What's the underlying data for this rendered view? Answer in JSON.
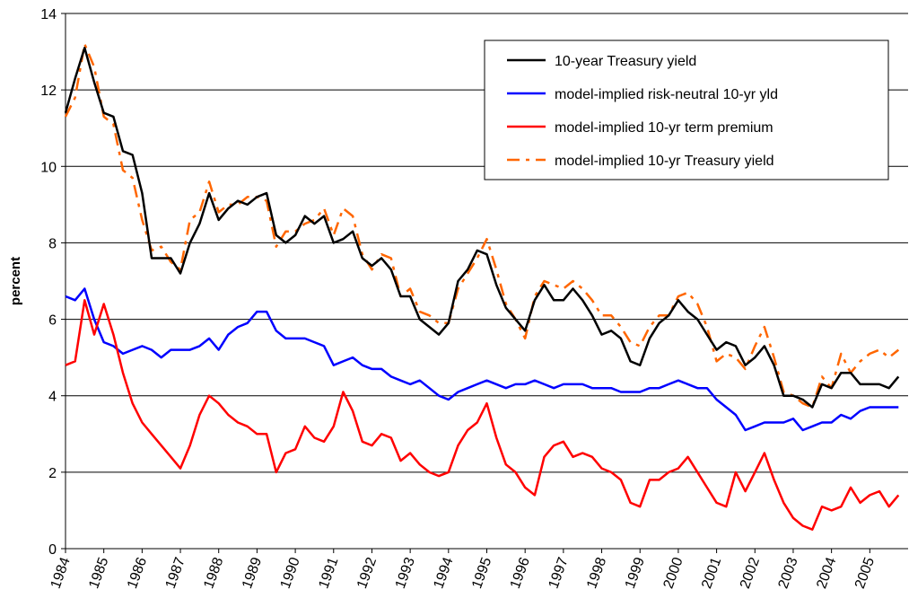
{
  "chart_data": {
    "type": "line",
    "y_label": "percent",
    "x": [
      1984,
      1984.25,
      1984.5,
      1984.75,
      1985,
      1985.25,
      1985.5,
      1985.75,
      1986,
      1986.25,
      1986.5,
      1986.75,
      1987,
      1987.25,
      1987.5,
      1987.75,
      1988,
      1988.25,
      1988.5,
      1988.75,
      1989,
      1989.25,
      1989.5,
      1989.75,
      1990,
      1990.25,
      1990.5,
      1990.75,
      1991,
      1991.25,
      1991.5,
      1991.75,
      1992,
      1992.25,
      1992.5,
      1992.75,
      1993,
      1993.25,
      1993.5,
      1993.75,
      1994,
      1994.25,
      1994.5,
      1994.75,
      1995,
      1995.25,
      1995.5,
      1995.75,
      1996,
      1996.25,
      1996.5,
      1996.75,
      1997,
      1997.25,
      1997.5,
      1997.75,
      1998,
      1998.25,
      1998.5,
      1998.75,
      1999,
      1999.25,
      1999.5,
      1999.75,
      2000,
      2000.25,
      2000.5,
      2000.75,
      2001,
      2001.25,
      2001.5,
      2001.75,
      2002,
      2002.25,
      2002.5,
      2002.75,
      2003,
      2003.25,
      2003.5,
      2003.75,
      2004,
      2004.25,
      2004.5,
      2004.75,
      2005,
      2005.25,
      2005.5,
      2005.75
    ],
    "series": [
      {
        "name": "10-year Treasury yield",
        "color": "#000000",
        "style": "solid",
        "values": [
          11.4,
          12.3,
          13.1,
          12.2,
          11.4,
          11.3,
          10.4,
          10.3,
          9.3,
          7.6,
          7.6,
          7.6,
          7.2,
          8.0,
          8.5,
          9.3,
          8.6,
          8.9,
          9.1,
          9.0,
          9.2,
          9.3,
          8.2,
          8.0,
          8.2,
          8.7,
          8.5,
          8.7,
          8.0,
          8.1,
          8.3,
          7.6,
          7.4,
          7.6,
          7.3,
          6.6,
          6.6,
          6.0,
          5.8,
          5.6,
          5.9,
          7.0,
          7.3,
          7.8,
          7.7,
          6.9,
          6.3,
          6.0,
          5.7,
          6.5,
          6.9,
          6.5,
          6.5,
          6.8,
          6.5,
          6.1,
          5.6,
          5.7,
          5.5,
          4.9,
          4.8,
          5.5,
          5.9,
          6.1,
          6.5,
          6.2,
          6.0,
          5.6,
          5.2,
          5.4,
          5.3,
          4.8,
          5.0,
          5.3,
          4.8,
          4.0,
          4.0,
          3.9,
          3.7,
          4.3,
          4.2,
          4.6,
          4.6,
          4.3,
          4.3,
          4.3,
          4.2,
          4.5
        ]
      },
      {
        "name": "model-implied risk-neutral 10-yr yld",
        "color": "#0000ff",
        "style": "solid",
        "values": [
          6.6,
          6.5,
          6.8,
          6.0,
          5.4,
          5.3,
          5.1,
          5.2,
          5.3,
          5.2,
          5.0,
          5.2,
          5.2,
          5.2,
          5.3,
          5.5,
          5.2,
          5.6,
          5.8,
          5.9,
          6.2,
          6.2,
          5.7,
          5.5,
          5.5,
          5.5,
          5.4,
          5.3,
          4.8,
          4.9,
          5.0,
          4.8,
          4.7,
          4.7,
          4.5,
          4.4,
          4.3,
          4.4,
          4.2,
          4.0,
          3.9,
          4.1,
          4.2,
          4.3,
          4.4,
          4.3,
          4.2,
          4.3,
          4.3,
          4.4,
          4.3,
          4.2,
          4.3,
          4.3,
          4.3,
          4.2,
          4.2,
          4.2,
          4.1,
          4.1,
          4.1,
          4.2,
          4.2,
          4.3,
          4.4,
          4.3,
          4.2,
          4.2,
          3.9,
          3.7,
          3.5,
          3.1,
          3.2,
          3.3,
          3.3,
          3.3,
          3.4,
          3.1,
          3.2,
          3.3,
          3.3,
          3.5,
          3.4,
          3.6,
          3.7,
          3.7,
          3.7,
          3.7
        ]
      },
      {
        "name": "model-implied 10-yr term premium",
        "color": "#ff0000",
        "style": "solid",
        "values": [
          4.8,
          4.9,
          6.5,
          5.6,
          6.4,
          5.6,
          4.6,
          3.8,
          3.3,
          3.0,
          2.7,
          2.4,
          2.1,
          2.7,
          3.5,
          4.0,
          3.8,
          3.5,
          3.3,
          3.2,
          3.0,
          3.0,
          2.0,
          2.5,
          2.6,
          3.2,
          2.9,
          2.8,
          3.2,
          4.1,
          3.6,
          2.8,
          2.7,
          3.0,
          2.9,
          2.3,
          2.5,
          2.2,
          2.0,
          1.9,
          2.0,
          2.7,
          3.1,
          3.3,
          3.8,
          2.9,
          2.2,
          2.0,
          1.6,
          1.4,
          2.4,
          2.7,
          2.8,
          2.4,
          2.5,
          2.4,
          2.1,
          2.0,
          1.8,
          1.2,
          1.1,
          1.8,
          1.8,
          2.0,
          2.1,
          2.4,
          2.0,
          1.6,
          1.2,
          1.1,
          2.0,
          1.5,
          2.0,
          2.5,
          1.8,
          1.2,
          0.8,
          0.6,
          0.5,
          1.1,
          1.0,
          1.1,
          1.6,
          1.2,
          1.4,
          1.5,
          1.1,
          1.4
        ]
      },
      {
        "name": "model-implied 10-yr Treasury yield",
        "color": "#ff6600",
        "style": "dashdot",
        "values": [
          11.3,
          11.8,
          13.2,
          12.6,
          11.3,
          11.1,
          9.9,
          9.7,
          8.6,
          7.8,
          7.9,
          7.5,
          7.3,
          8.6,
          8.8,
          9.6,
          8.8,
          9.0,
          9.0,
          9.2,
          9.2,
          9.1,
          7.9,
          8.3,
          8.3,
          8.5,
          8.6,
          8.9,
          8.2,
          8.9,
          8.7,
          7.7,
          7.3,
          7.7,
          7.6,
          6.6,
          6.8,
          6.2,
          6.1,
          5.9,
          5.9,
          6.8,
          7.2,
          7.6,
          8.1,
          7.3,
          6.4,
          6.0,
          5.5,
          6.6,
          7.0,
          6.9,
          6.8,
          7.0,
          6.8,
          6.5,
          6.1,
          6.1,
          5.8,
          5.4,
          5.3,
          5.8,
          6.1,
          6.1,
          6.6,
          6.7,
          6.4,
          5.8,
          4.9,
          5.1,
          5.0,
          4.7,
          5.3,
          5.8,
          5.0,
          4.1,
          4.0,
          3.8,
          3.7,
          4.5,
          4.2,
          5.1,
          4.6,
          4.9,
          5.1,
          5.2,
          5.0,
          5.2
        ]
      }
    ],
    "xlim": [
      1984,
      2006
    ],
    "xticks": [
      1984,
      1985,
      1986,
      1987,
      1988,
      1989,
      1990,
      1991,
      1992,
      1993,
      1994,
      1995,
      1996,
      1997,
      1998,
      1999,
      2000,
      2001,
      2002,
      2003,
      2004,
      2005
    ],
    "ylim": [
      0,
      14
    ],
    "yticks": [
      0,
      2,
      4,
      6,
      8,
      10,
      12,
      14
    ],
    "grid": true,
    "legend": "top-right"
  }
}
